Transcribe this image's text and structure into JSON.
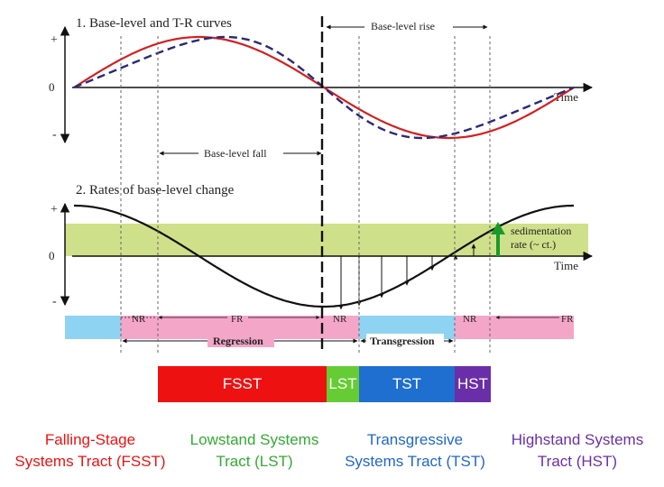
{
  "panel1": {
    "title": "1. Base-level and T-R curves",
    "y_plus": "+",
    "y_zero": "0",
    "y_minus": "-",
    "x_label": "Time",
    "rise_label": "Base-level rise",
    "fall_label": "Base-level fall"
  },
  "panel2": {
    "title": "2. Rates of base-level change",
    "y_plus": "+",
    "y_zero": "0",
    "y_minus": "-",
    "x_label": "Time",
    "sedimentation_line1": "sedimentation",
    "sedimentation_line2": "rate (~ ct.)"
  },
  "shoreline": {
    "nr1": "NR",
    "fr1": "FR",
    "nr2": "NR",
    "nr3": "NR",
    "fr2": "FR",
    "regression": "Regression",
    "transgression": "Transgression"
  },
  "tracts": [
    {
      "abbr": "FSST",
      "line1": "Falling-Stage",
      "line2": "Systems Tract (FSST)",
      "color": "#ee1111",
      "text_color": "#ee1111"
    },
    {
      "abbr": "LST",
      "line1": "Lowstand Systems",
      "line2": "Tract (LST)",
      "color": "#66cc33",
      "text_color": "#33aa33"
    },
    {
      "abbr": "TST",
      "line1": "Transgressive",
      "line2": "Systems Tract (TST)",
      "color": "#1e6fd0",
      "text_color": "#2266cc"
    },
    {
      "abbr": "HST",
      "line1": "Highstand Systems",
      "line2": "Tract (HST)",
      "color": "#6a2fa8",
      "text_color": "#6a2fa8"
    }
  ],
  "colors": {
    "base_level_curve": "#d42020",
    "tr_curve": "#2a2a7a",
    "sedimentation_band": "#cfe08a",
    "sedimentation_arrow": "#1a9a2a",
    "regression_fill": "#f4a6c8",
    "transgression_fill": "#8fd3f2"
  }
}
